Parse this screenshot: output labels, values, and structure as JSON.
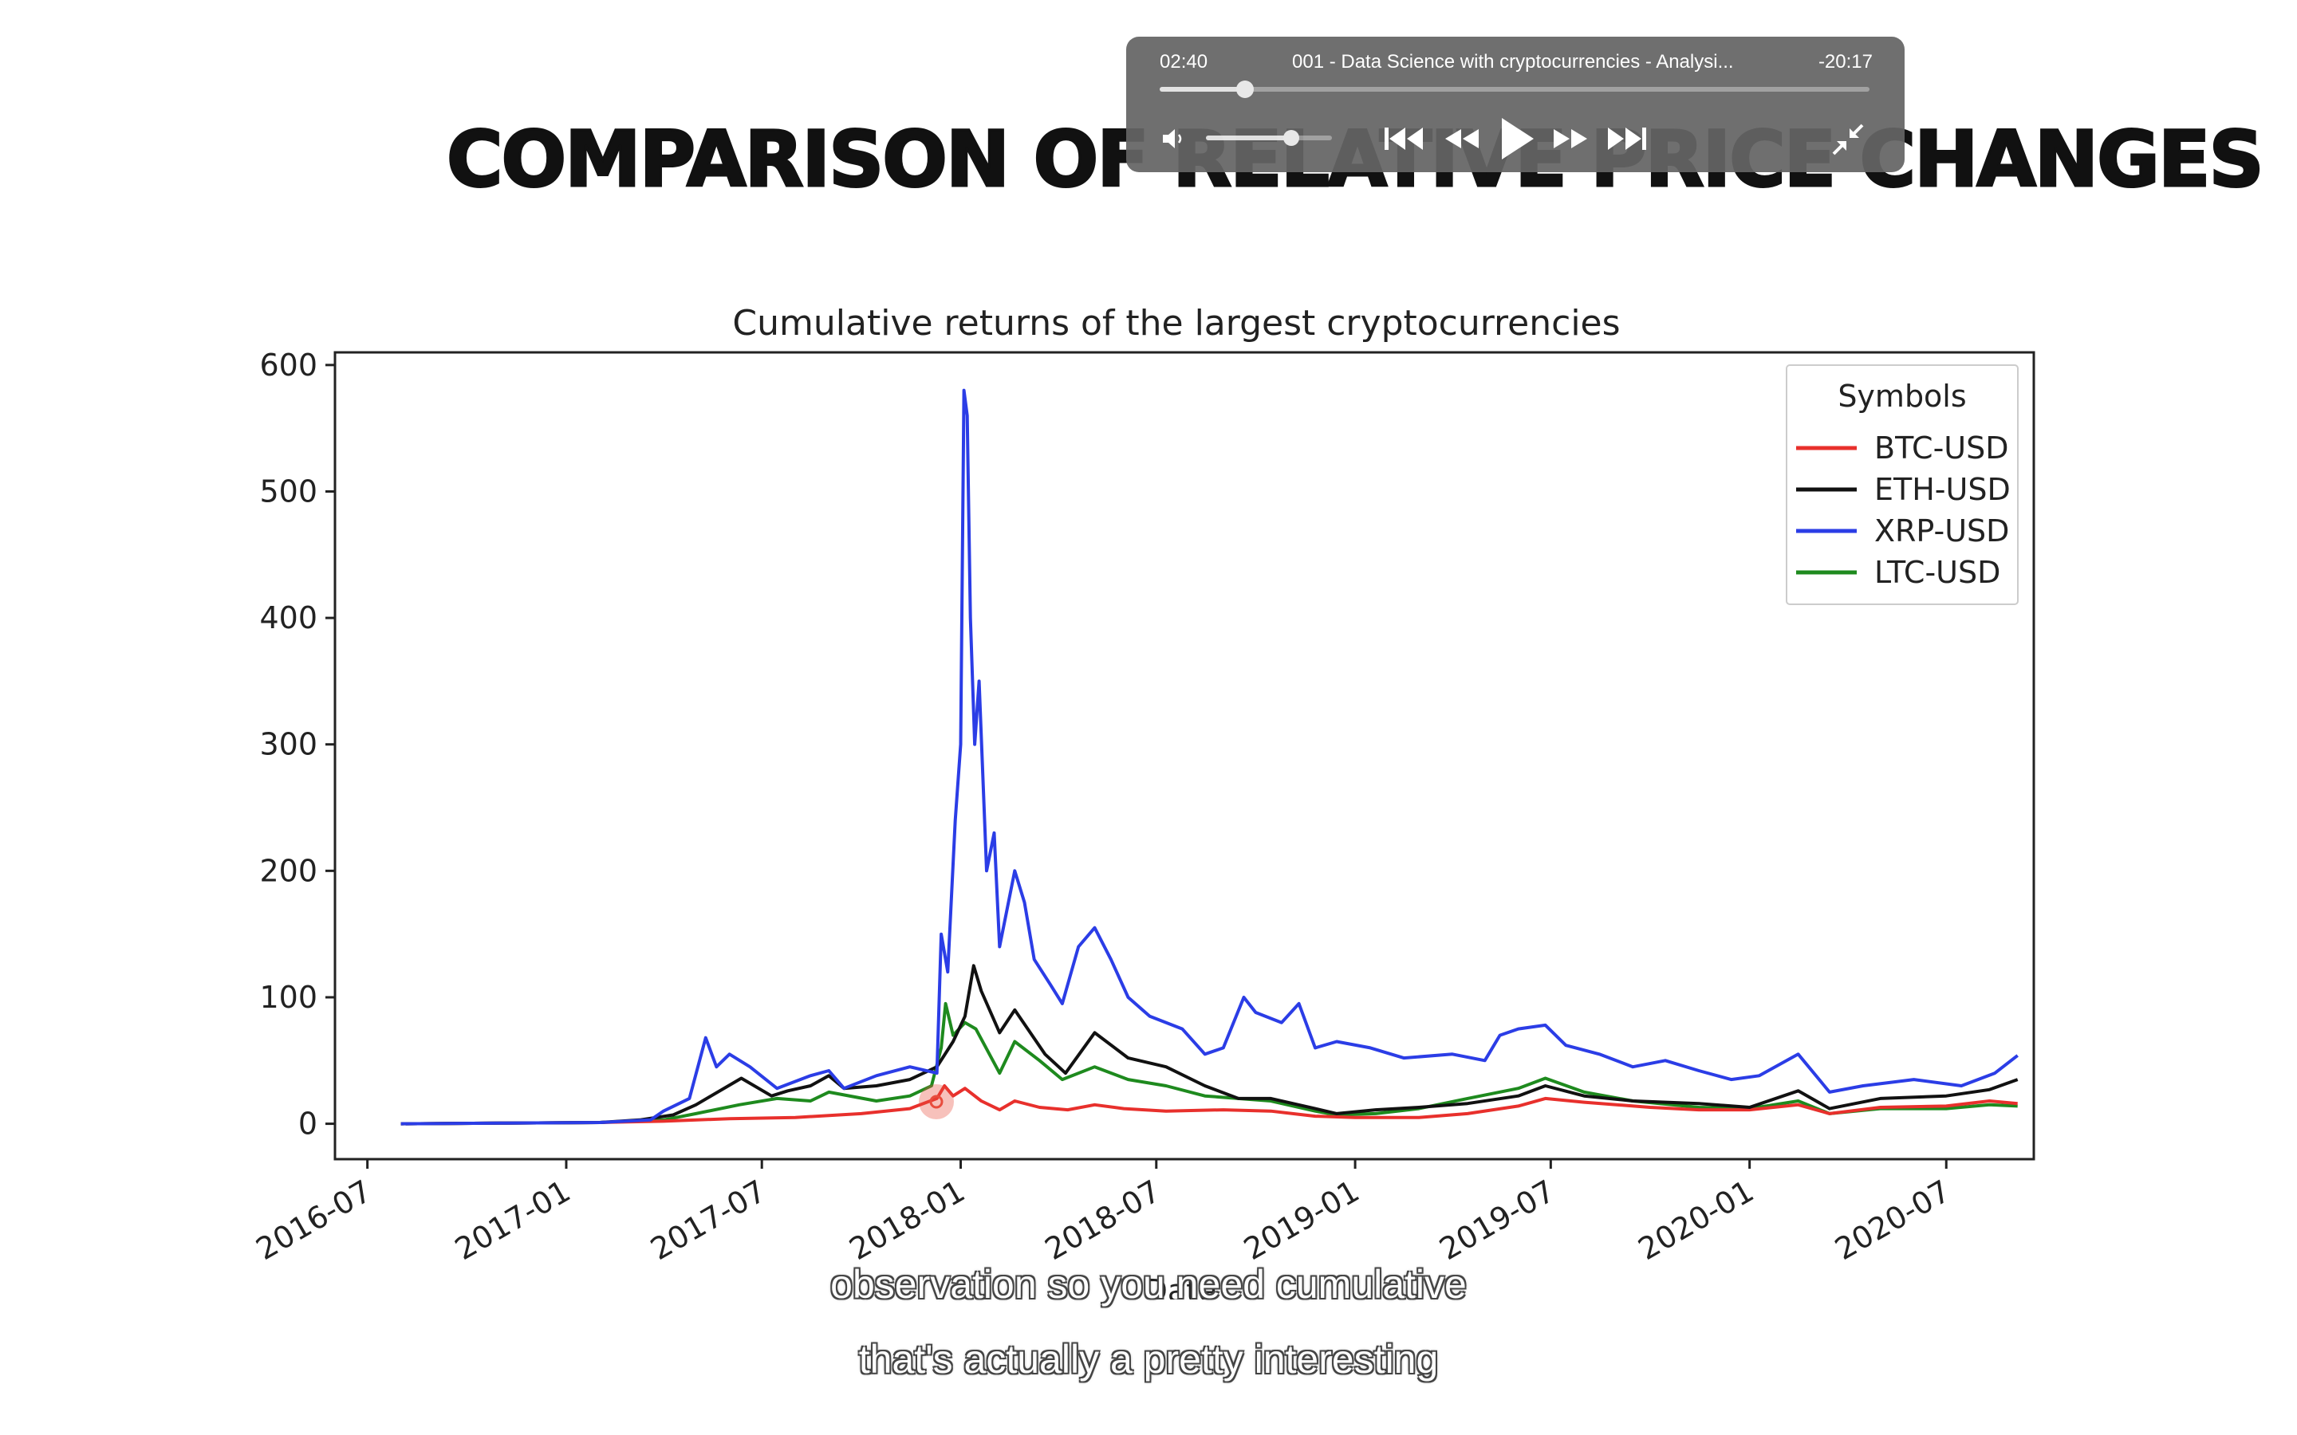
{
  "slide": {
    "title": "Comparison of Relative Price Changes"
  },
  "chart_data": {
    "type": "line",
    "title": "Cumulative returns of the largest cryptocurrencies",
    "xlabel": "Date",
    "ylabel": "",
    "ylim": [
      -28,
      610
    ],
    "yticks": [
      0,
      100,
      200,
      300,
      400,
      500,
      600
    ],
    "xticks": [
      "2016-07",
      "2017-01",
      "2017-07",
      "2018-01",
      "2018-07",
      "2019-01",
      "2019-07",
      "2020-01",
      "2020-07"
    ],
    "xlim": [
      "2016-06-01",
      "2020-09-20"
    ],
    "grid": false,
    "legend": {
      "title": "Symbols",
      "placement": "top-right"
    },
    "series": [
      {
        "name": "BTC-USD",
        "color": "#e8302c",
        "points": [
          [
            "2016-08-01",
            0
          ],
          [
            "2016-11-01",
            0.5
          ],
          [
            "2017-02-01",
            1
          ],
          [
            "2017-04-01",
            2
          ],
          [
            "2017-06-01",
            4
          ],
          [
            "2017-08-01",
            5
          ],
          [
            "2017-10-01",
            8
          ],
          [
            "2017-11-15",
            12
          ],
          [
            "2017-12-10",
            20
          ],
          [
            "2017-12-17",
            30
          ],
          [
            "2017-12-25",
            22
          ],
          [
            "2018-01-05",
            28
          ],
          [
            "2018-01-20",
            18
          ],
          [
            "2018-02-06",
            11
          ],
          [
            "2018-02-20",
            18
          ],
          [
            "2018-03-15",
            13
          ],
          [
            "2018-04-10",
            11
          ],
          [
            "2018-05-05",
            15
          ],
          [
            "2018-06-01",
            12
          ],
          [
            "2018-07-10",
            10
          ],
          [
            "2018-09-01",
            11
          ],
          [
            "2018-10-15",
            10
          ],
          [
            "2018-11-25",
            6
          ],
          [
            "2019-01-01",
            5
          ],
          [
            "2019-03-01",
            5
          ],
          [
            "2019-04-15",
            8
          ],
          [
            "2019-06-01",
            14
          ],
          [
            "2019-06-26",
            20
          ],
          [
            "2019-08-01",
            17
          ],
          [
            "2019-10-01",
            13
          ],
          [
            "2019-11-15",
            11
          ],
          [
            "2020-01-01",
            11
          ],
          [
            "2020-02-15",
            15
          ],
          [
            "2020-03-15",
            8
          ],
          [
            "2020-05-01",
            13
          ],
          [
            "2020-07-01",
            14
          ],
          [
            "2020-08-10",
            18
          ],
          [
            "2020-09-05",
            16
          ]
        ]
      },
      {
        "name": "ETH-USD",
        "color": "#111111",
        "points": [
          [
            "2016-08-01",
            0
          ],
          [
            "2016-11-01",
            0.5
          ],
          [
            "2017-02-01",
            1
          ],
          [
            "2017-03-10",
            3
          ],
          [
            "2017-04-10",
            7
          ],
          [
            "2017-05-01",
            15
          ],
          [
            "2017-06-12",
            36
          ],
          [
            "2017-07-10",
            22
          ],
          [
            "2017-07-25",
            26
          ],
          [
            "2017-08-15",
            30
          ],
          [
            "2017-09-01",
            38
          ],
          [
            "2017-09-15",
            28
          ],
          [
            "2017-10-15",
            30
          ],
          [
            "2017-11-15",
            35
          ],
          [
            "2017-12-10",
            45
          ],
          [
            "2017-12-25",
            65
          ],
          [
            "2018-01-05",
            85
          ],
          [
            "2018-01-13",
            125
          ],
          [
            "2018-01-20",
            105
          ],
          [
            "2018-02-06",
            72
          ],
          [
            "2018-02-20",
            90
          ],
          [
            "2018-03-20",
            55
          ],
          [
            "2018-04-08",
            40
          ],
          [
            "2018-05-05",
            72
          ],
          [
            "2018-06-05",
            52
          ],
          [
            "2018-07-10",
            45
          ],
          [
            "2018-08-15",
            30
          ],
          [
            "2018-09-15",
            20
          ],
          [
            "2018-10-15",
            20
          ],
          [
            "2018-11-25",
            12
          ],
          [
            "2018-12-15",
            8
          ],
          [
            "2019-01-20",
            11
          ],
          [
            "2019-03-01",
            13
          ],
          [
            "2019-04-15",
            16
          ],
          [
            "2019-06-01",
            22
          ],
          [
            "2019-06-26",
            30
          ],
          [
            "2019-08-01",
            22
          ],
          [
            "2019-09-15",
            18
          ],
          [
            "2019-11-15",
            16
          ],
          [
            "2020-01-01",
            13
          ],
          [
            "2020-02-15",
            26
          ],
          [
            "2020-03-15",
            12
          ],
          [
            "2020-05-01",
            20
          ],
          [
            "2020-07-01",
            22
          ],
          [
            "2020-08-10",
            27
          ],
          [
            "2020-09-05",
            35
          ]
        ]
      },
      {
        "name": "XRP-USD",
        "color": "#2b3de6",
        "points": [
          [
            "2016-08-01",
            0
          ],
          [
            "2016-11-01",
            0.5
          ],
          [
            "2017-02-01",
            1
          ],
          [
            "2017-03-20",
            3
          ],
          [
            "2017-04-01",
            10
          ],
          [
            "2017-04-25",
            20
          ],
          [
            "2017-05-10",
            68
          ],
          [
            "2017-05-20",
            45
          ],
          [
            "2017-06-01",
            55
          ],
          [
            "2017-06-20",
            45
          ],
          [
            "2017-07-15",
            28
          ],
          [
            "2017-08-15",
            38
          ],
          [
            "2017-09-01",
            42
          ],
          [
            "2017-09-15",
            28
          ],
          [
            "2017-10-15",
            38
          ],
          [
            "2017-11-15",
            45
          ],
          [
            "2017-12-10",
            40
          ],
          [
            "2017-12-14",
            150
          ],
          [
            "2017-12-20",
            120
          ],
          [
            "2017-12-27",
            240
          ],
          [
            "2018-01-01",
            300
          ],
          [
            "2018-01-04",
            580
          ],
          [
            "2018-01-07",
            560
          ],
          [
            "2018-01-10",
            400
          ],
          [
            "2018-01-14",
            300
          ],
          [
            "2018-01-18",
            350
          ],
          [
            "2018-01-25",
            200
          ],
          [
            "2018-02-01",
            230
          ],
          [
            "2018-02-06",
            140
          ],
          [
            "2018-02-20",
            200
          ],
          [
            "2018-03-01",
            175
          ],
          [
            "2018-03-10",
            130
          ],
          [
            "2018-03-25",
            110
          ],
          [
            "2018-04-05",
            95
          ],
          [
            "2018-04-20",
            140
          ],
          [
            "2018-05-05",
            155
          ],
          [
            "2018-05-20",
            130
          ],
          [
            "2018-06-05",
            100
          ],
          [
            "2018-06-25",
            85
          ],
          [
            "2018-07-25",
            75
          ],
          [
            "2018-08-15",
            55
          ],
          [
            "2018-09-01",
            60
          ],
          [
            "2018-09-20",
            100
          ],
          [
            "2018-10-01",
            88
          ],
          [
            "2018-10-25",
            80
          ],
          [
            "2018-11-10",
            95
          ],
          [
            "2018-11-25",
            60
          ],
          [
            "2018-12-15",
            65
          ],
          [
            "2019-01-15",
            60
          ],
          [
            "2019-02-15",
            52
          ],
          [
            "2019-04-01",
            55
          ],
          [
            "2019-05-01",
            50
          ],
          [
            "2019-05-15",
            70
          ],
          [
            "2019-06-01",
            75
          ],
          [
            "2019-06-26",
            78
          ],
          [
            "2019-07-15",
            62
          ],
          [
            "2019-08-15",
            55
          ],
          [
            "2019-09-15",
            45
          ],
          [
            "2019-10-15",
            50
          ],
          [
            "2019-11-15",
            42
          ],
          [
            "2019-12-15",
            35
          ],
          [
            "2020-01-10",
            38
          ],
          [
            "2020-02-15",
            55
          ],
          [
            "2020-03-15",
            25
          ],
          [
            "2020-04-15",
            30
          ],
          [
            "2020-06-01",
            35
          ],
          [
            "2020-07-15",
            30
          ],
          [
            "2020-08-15",
            40
          ],
          [
            "2020-09-05",
            54
          ]
        ]
      },
      {
        "name": "LTC-USD",
        "color": "#1e8a1e",
        "points": [
          [
            "2016-08-01",
            0
          ],
          [
            "2016-11-01",
            0.5
          ],
          [
            "2017-02-01",
            1
          ],
          [
            "2017-04-01",
            3
          ],
          [
            "2017-05-01",
            8
          ],
          [
            "2017-06-10",
            15
          ],
          [
            "2017-07-15",
            20
          ],
          [
            "2017-08-15",
            18
          ],
          [
            "2017-09-01",
            25
          ],
          [
            "2017-10-15",
            18
          ],
          [
            "2017-11-15",
            22
          ],
          [
            "2017-12-05",
            30
          ],
          [
            "2017-12-14",
            60
          ],
          [
            "2017-12-18",
            95
          ],
          [
            "2017-12-25",
            70
          ],
          [
            "2018-01-05",
            80
          ],
          [
            "2018-01-15",
            75
          ],
          [
            "2018-02-06",
            40
          ],
          [
            "2018-02-20",
            65
          ],
          [
            "2018-03-15",
            50
          ],
          [
            "2018-04-05",
            35
          ],
          [
            "2018-05-05",
            45
          ],
          [
            "2018-06-05",
            35
          ],
          [
            "2018-07-10",
            30
          ],
          [
            "2018-08-15",
            22
          ],
          [
            "2018-10-15",
            18
          ],
          [
            "2018-11-25",
            10
          ],
          [
            "2018-12-15",
            7
          ],
          [
            "2019-01-20",
            8
          ],
          [
            "2019-03-01",
            12
          ],
          [
            "2019-04-15",
            20
          ],
          [
            "2019-06-01",
            28
          ],
          [
            "2019-06-26",
            36
          ],
          [
            "2019-08-01",
            25
          ],
          [
            "2019-09-15",
            18
          ],
          [
            "2019-11-15",
            13
          ],
          [
            "2020-01-01",
            12
          ],
          [
            "2020-02-15",
            18
          ],
          [
            "2020-03-15",
            8
          ],
          [
            "2020-05-01",
            12
          ],
          [
            "2020-07-01",
            12
          ],
          [
            "2020-08-10",
            15
          ],
          [
            "2020-09-05",
            14
          ]
        ]
      }
    ]
  },
  "player": {
    "time_elapsed": "02:40",
    "movie_title": "001 - Data Science with cryptocurrencies - Analysi...",
    "time_remaining": "-20:17",
    "progress_fraction": 0.12,
    "volume_fraction": 0.68,
    "icons": {
      "volume": "speaker-icon",
      "skip_back": "skip-back-icon",
      "rewind": "rewind-icon",
      "play": "play-icon",
      "fast_forward": "fast-forward-icon",
      "skip_forward": "skip-forward-icon",
      "exit_fullscreen": "exit-fullscreen-icon"
    }
  },
  "subtitles": {
    "line1": "observation so you need cumulative",
    "line2": "that's actually a pretty interesting"
  },
  "cursor": {
    "color": "#e84c3d"
  }
}
